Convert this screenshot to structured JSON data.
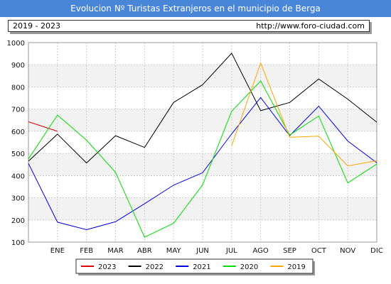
{
  "header": {
    "title": "Evolucion Nº Turistas Extranjeros en el municipio de Berga"
  },
  "info": {
    "period": "2019 - 2023",
    "url": "http://www.foro-ciudad.com"
  },
  "chart_data": {
    "type": "line",
    "categories": [
      "ENE",
      "FEB",
      "MAR",
      "ABR",
      "MAY",
      "JUN",
      "JUL",
      "AGO",
      "SEP",
      "OCT",
      "NOV",
      "DIC"
    ],
    "yticks": [
      100,
      200,
      300,
      400,
      500,
      600,
      700,
      800,
      900,
      1000
    ],
    "ylim": [
      100,
      1000
    ],
    "grid": true,
    "legend_position": "bottom",
    "series": [
      {
        "name": "2023",
        "color": "#dd0000",
        "x": [
          0.0,
          1.0
        ],
        "values": [
          643,
          600
        ]
      },
      {
        "name": "2022",
        "color": "#000000",
        "x": [
          0.0,
          1.0,
          2.0,
          3.0,
          4.0,
          5.0,
          6.0,
          7.0,
          8.0,
          9.0,
          10.0,
          11.0,
          12.0
        ],
        "values": [
          465,
          587,
          457,
          580,
          527,
          730,
          810,
          952,
          693,
          730,
          836,
          745,
          641
        ]
      },
      {
        "name": "2021",
        "color": "#0000dd",
        "x": [
          0.0,
          1.0,
          2.0,
          3.0,
          4.0,
          5.0,
          6.0,
          7.0,
          8.0,
          9.0,
          10.0,
          11.0,
          12.0
        ],
        "values": [
          455,
          190,
          156,
          192,
          273,
          357,
          413,
          588,
          752,
          580,
          713,
          556,
          458
        ]
      },
      {
        "name": "2020",
        "color": "#00dd00",
        "x": [
          0.0,
          1.0,
          2.0,
          3.0,
          4.0,
          5.0,
          6.0,
          7.0,
          8.0,
          9.0,
          10.0,
          11.0,
          12.0
        ],
        "values": [
          475,
          673,
          560,
          415,
          122,
          185,
          358,
          690,
          827,
          583,
          669,
          367,
          452
        ]
      },
      {
        "name": "2019",
        "color": "#ffa500",
        "x": [
          7.0,
          8.0,
          9.0,
          10.0,
          11.0,
          12.0
        ],
        "values": [
          534,
          908,
          573,
          578,
          444,
          467
        ]
      }
    ]
  }
}
